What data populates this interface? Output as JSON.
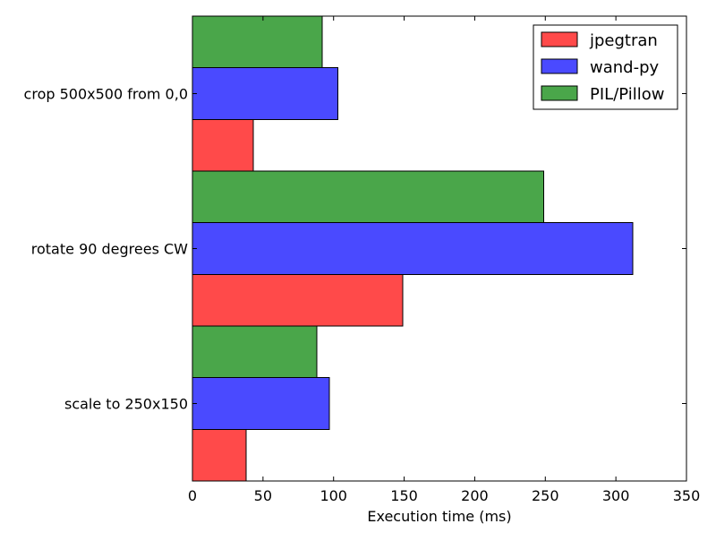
{
  "chart_data": {
    "type": "bar",
    "orientation": "horizontal",
    "title": "",
    "xlabel": "Execution time (ms)",
    "ylabel": "",
    "xlim": [
      0,
      350
    ],
    "xticks": [
      0,
      50,
      100,
      150,
      200,
      250,
      300,
      350
    ],
    "categories": [
      "crop 500x500 from 0,0",
      "rotate 90 degrees CW",
      "scale to 250x150"
    ],
    "grid": false,
    "legend_position": "top-right",
    "series": [
      {
        "name": "jpegtran",
        "color": "#ff4a4a",
        "values": [
          43,
          149,
          38
        ]
      },
      {
        "name": "wand-py",
        "color": "#4a4aff",
        "values": [
          103,
          312,
          97
        ]
      },
      {
        "name": "PIL/Pillow",
        "color": "#4aa64a",
        "values": [
          92,
          249,
          88
        ]
      }
    ]
  }
}
